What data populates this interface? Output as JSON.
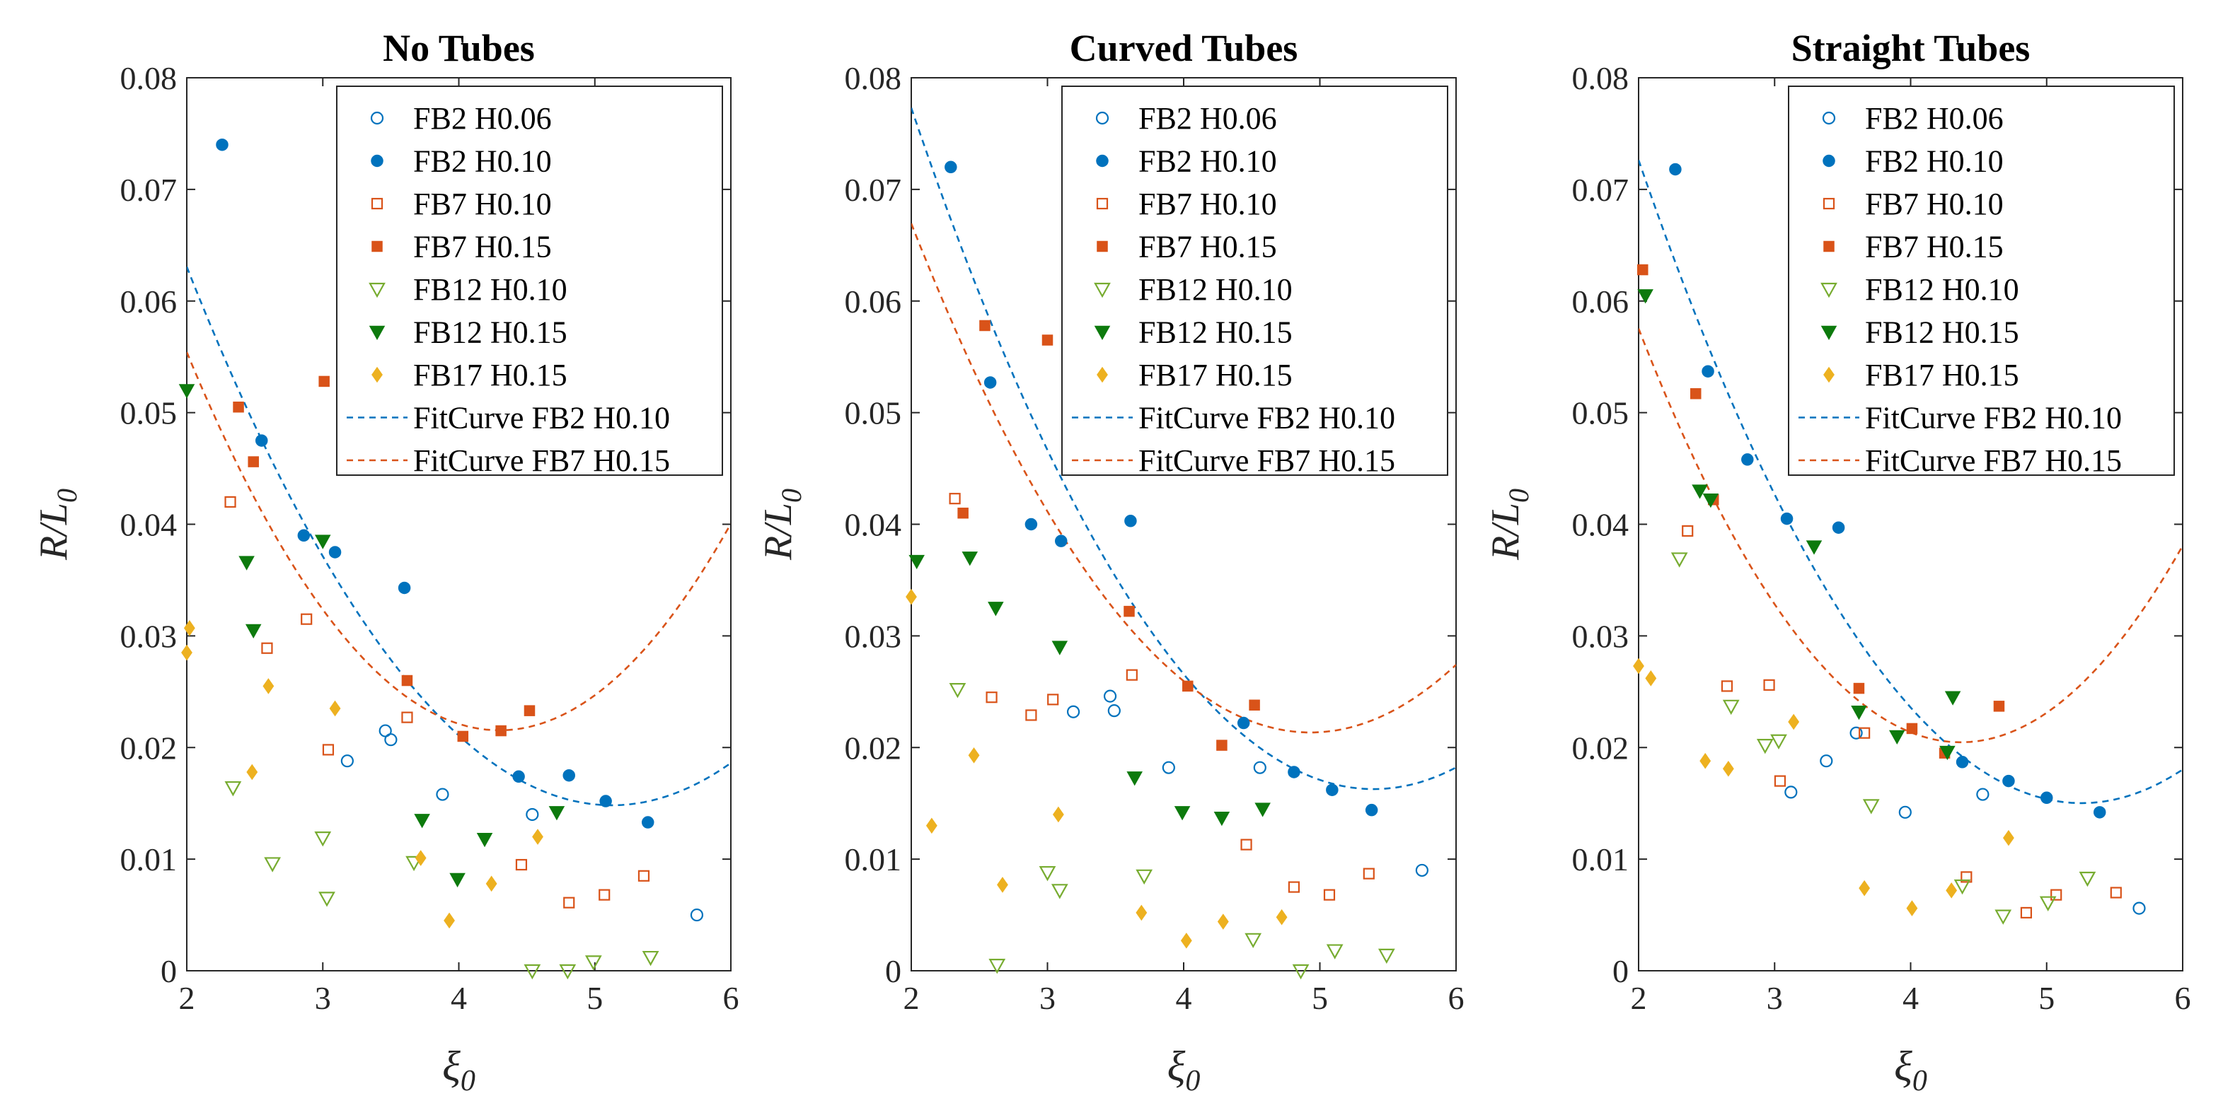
{
  "chart_data": [
    {
      "type": "scatter",
      "title": "No Tubes",
      "xlabel": "ξ0",
      "ylabel": "R/L0",
      "xlim": [
        2,
        6
      ],
      "ylim": [
        0,
        0.08
      ],
      "xticks": [
        "2",
        "3",
        "4",
        "5",
        "6"
      ],
      "yticks": [
        "0",
        "0.01",
        "0.02",
        "0.03",
        "0.04",
        "0.05",
        "0.06",
        "0.07",
        "0.08"
      ],
      "legend_position": "top-right",
      "series": [
        {
          "name": "FB2 H0.06",
          "x": [
            3.18,
            3.46,
            3.5,
            3.88,
            4.54,
            5.75
          ],
          "y": [
            0.0188,
            0.0215,
            0.0207,
            0.0158,
            0.014,
            0.005
          ]
        },
        {
          "name": "FB2 H0.10",
          "x": [
            2.26,
            2.55,
            2.86,
            3.09,
            3.6,
            4.44,
            4.81,
            5.08,
            5.39
          ],
          "y": [
            0.074,
            0.0475,
            0.039,
            0.0375,
            0.0343,
            0.0174,
            0.0175,
            0.0152,
            0.0133
          ]
        },
        {
          "name": "FB7 H0.10",
          "x": [
            2.32,
            2.59,
            2.88,
            3.04,
            3.62,
            4.46,
            4.81,
            5.07,
            5.36
          ],
          "y": [
            0.042,
            0.0289,
            0.0315,
            0.0198,
            0.0227,
            0.0095,
            0.0061,
            0.0068,
            0.0085
          ]
        },
        {
          "name": "FB7 H0.15",
          "x": [
            2.38,
            2.49,
            3.01,
            3.62,
            4.03,
            4.31,
            4.52
          ],
          "y": [
            0.0505,
            0.0456,
            0.0528,
            0.026,
            0.021,
            0.0215,
            0.0233
          ]
        },
        {
          "name": "FB12 H0.10",
          "x": [
            2.34,
            2.63,
            3.0,
            3.03,
            3.67,
            4.54,
            4.8,
            4.99,
            5.41
          ],
          "y": [
            0.0164,
            0.0096,
            0.0119,
            0.0065,
            0.0097,
            0.0,
            0.0,
            0.0008,
            0.0012
          ]
        },
        {
          "name": "FB12 H0.15",
          "x": [
            2.0,
            2.44,
            2.49,
            3.0,
            3.73,
            3.99,
            4.19,
            4.72
          ],
          "y": [
            0.052,
            0.0366,
            0.0305,
            0.0385,
            0.0135,
            0.0082,
            0.0118,
            0.0142
          ]
        },
        {
          "name": "FB17 H0.15",
          "x": [
            2.02,
            2.0,
            2.48,
            2.6,
            3.09,
            3.72,
            3.93,
            4.24,
            4.58
          ],
          "y": [
            0.0307,
            0.0285,
            0.0178,
            0.0255,
            0.0235,
            0.0101,
            0.0045,
            0.0078,
            0.012
          ]
        },
        {
          "name": "FitCurve FB2 H0.10",
          "fit": true,
          "coefficients": [
            0.004941,
            -0.05064,
            0.14458
          ]
        },
        {
          "name": "FitCurve FB7 H0.15",
          "fit": true,
          "coefficients": [
            0.006405,
            -0.05508,
            0.13996
          ]
        }
      ]
    },
    {
      "type": "scatter",
      "title": "Curved Tubes",
      "xlabel": "ξ0",
      "ylabel": "R/L0",
      "xlim": [
        2,
        6
      ],
      "ylim": [
        0,
        0.08
      ],
      "xticks": [
        "2",
        "3",
        "4",
        "5",
        "6"
      ],
      "yticks": [
        "0",
        "0.01",
        "0.02",
        "0.03",
        "0.04",
        "0.05",
        "0.06",
        "0.07",
        "0.08"
      ],
      "legend_position": "top-right",
      "series": [
        {
          "name": "FB2 H0.06",
          "x": [
            3.19,
            3.46,
            3.49,
            3.89,
            4.56,
            5.75
          ],
          "y": [
            0.0232,
            0.0246,
            0.0233,
            0.0182,
            0.0182,
            0.009
          ]
        },
        {
          "name": "FB2 H0.10",
          "x": [
            2.29,
            2.58,
            2.88,
            3.1,
            3.61,
            4.44,
            4.81,
            5.09,
            5.38
          ],
          "y": [
            0.072,
            0.0527,
            0.04,
            0.0385,
            0.0403,
            0.0222,
            0.0178,
            0.0162,
            0.0144
          ]
        },
        {
          "name": "FB7 H0.10",
          "x": [
            2.32,
            2.59,
            2.88,
            3.04,
            3.62,
            4.46,
            4.81,
            5.07,
            5.36
          ],
          "y": [
            0.0423,
            0.0245,
            0.0229,
            0.0243,
            0.0265,
            0.0113,
            0.0075,
            0.0068,
            0.0087
          ]
        },
        {
          "name": "FB7 H0.15",
          "x": [
            2.38,
            2.54,
            3.0,
            3.6,
            4.03,
            4.28,
            4.52
          ],
          "y": [
            0.041,
            0.0578,
            0.0565,
            0.0322,
            0.0255,
            0.0202,
            0.0238
          ]
        },
        {
          "name": "FB12 H0.10",
          "x": [
            2.34,
            2.63,
            3.0,
            3.09,
            3.71,
            4.51,
            4.86,
            5.11,
            5.49
          ],
          "y": [
            0.0252,
            0.0005,
            0.0088,
            0.0072,
            0.0085,
            0.0028,
            0.0,
            0.0018,
            0.0014
          ]
        },
        {
          "name": "FB12 H0.15",
          "x": [
            2.04,
            2.43,
            2.62,
            3.09,
            3.64,
            3.99,
            4.28,
            4.58
          ],
          "y": [
            0.0367,
            0.037,
            0.0325,
            0.029,
            0.0173,
            0.0142,
            0.0137,
            0.0145
          ]
        },
        {
          "name": "FB17 H0.15",
          "x": [
            2.0,
            2.15,
            2.46,
            2.67,
            3.08,
            3.69,
            4.02,
            4.29,
            4.72
          ],
          "y": [
            0.0335,
            0.013,
            0.0193,
            0.0077,
            0.014,
            0.0052,
            0.0027,
            0.0044,
            0.0048
          ]
        },
        {
          "name": "FitCurve FB2 H0.10",
          "fit": true,
          "coefficients": [
            0.005296,
            -0.05714,
            0.1704
          ]
        },
        {
          "name": "FitCurve FB7 H0.15",
          "fit": true,
          "coefficients": [
            0.005307,
            -0.05234,
            0.1504
          ]
        }
      ]
    },
    {
      "type": "scatter",
      "title": "Straight Tubes",
      "xlabel": "ξ0",
      "ylabel": "R/L0",
      "xlim": [
        2,
        6
      ],
      "ylim": [
        0,
        0.08
      ],
      "xticks": [
        "2",
        "3",
        "4",
        "5",
        "6"
      ],
      "yticks": [
        "0",
        "0.01",
        "0.02",
        "0.03",
        "0.04",
        "0.05",
        "0.06",
        "0.07",
        "0.08"
      ],
      "legend_position": "top-right",
      "series": [
        {
          "name": "FB2 H0.06",
          "x": [
            3.12,
            3.38,
            3.6,
            3.96,
            4.53,
            5.68
          ],
          "y": [
            0.016,
            0.0188,
            0.0213,
            0.0142,
            0.0158,
            0.0056
          ]
        },
        {
          "name": "FB2 H0.10",
          "x": [
            2.27,
            2.51,
            2.8,
            3.09,
            3.47,
            4.38,
            4.72,
            5.0,
            5.39
          ],
          "y": [
            0.0718,
            0.0537,
            0.0458,
            0.0405,
            0.0397,
            0.0187,
            0.017,
            0.0155,
            0.0142
          ]
        },
        {
          "name": "FB7 H0.10",
          "x": [
            2.36,
            2.65,
            2.96,
            3.04,
            3.66,
            4.41,
            4.85,
            5.07,
            5.51
          ],
          "y": [
            0.0394,
            0.0255,
            0.0256,
            0.017,
            0.0213,
            0.0084,
            0.0052,
            0.0068,
            0.007
          ]
        },
        {
          "name": "FB7 H0.15",
          "x": [
            2.03,
            2.42,
            2.55,
            3.62,
            4.01,
            4.25,
            4.65
          ],
          "y": [
            0.0628,
            0.0517,
            0.0422,
            0.0253,
            0.0217,
            0.0195,
            0.0237
          ]
        },
        {
          "name": "FB12 H0.10",
          "x": [
            2.3,
            2.68,
            2.93,
            3.03,
            3.71,
            4.38,
            4.68,
            5.01,
            5.3
          ],
          "y": [
            0.0369,
            0.0237,
            0.0202,
            0.0206,
            0.0148,
            0.0076,
            0.0049,
            0.0061,
            0.0083
          ]
        },
        {
          "name": "FB12 H0.15",
          "x": [
            2.05,
            2.45,
            2.53,
            3.29,
            3.62,
            3.9,
            4.27,
            4.31
          ],
          "y": [
            0.0605,
            0.043,
            0.0422,
            0.038,
            0.0232,
            0.021,
            0.0196,
            0.0245
          ]
        },
        {
          "name": "FB17 H0.15",
          "x": [
            2.0,
            2.09,
            2.49,
            2.66,
            3.14,
            3.66,
            4.01,
            4.3,
            4.72
          ],
          "y": [
            0.0273,
            0.0262,
            0.0188,
            0.0181,
            0.0223,
            0.0074,
            0.0056,
            0.0072,
            0.0119
          ]
        },
        {
          "name": "FitCurve FB2 H0.10",
          "fit": true,
          "coefficients": [
            0.005435,
            -0.05713,
            0.16515
          ]
        },
        {
          "name": "FitCurve FB7 H0.15",
          "fit": true,
          "coefficients": [
            0.006611,
            -0.05775,
            0.14659
          ]
        }
      ]
    }
  ],
  "colors": {
    "blue": "#0072BD",
    "orange": "#D95319",
    "green": "#77AC30",
    "dark_green": "#0D7A0D",
    "gold": "#EDB120",
    "axis": "#262626"
  }
}
